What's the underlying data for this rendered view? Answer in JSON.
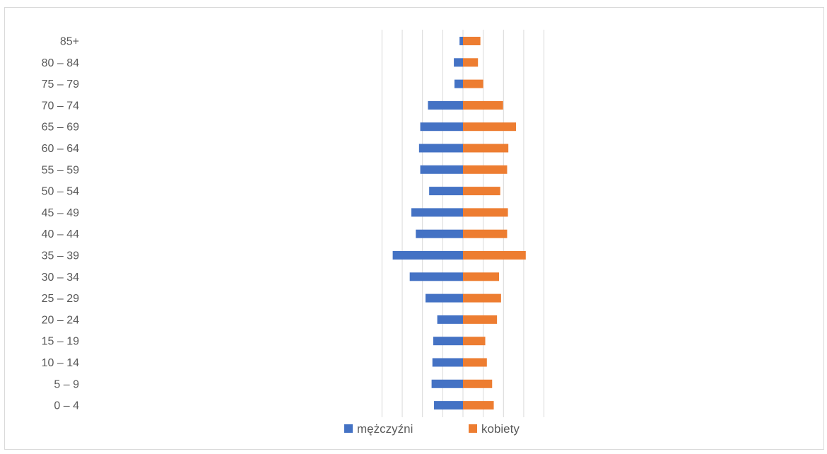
{
  "chart_data": {
    "type": "bar",
    "orientation": "horizontal",
    "layout": "population-pyramid",
    "categories": [
      "0 – 4",
      "5 – 9",
      "10 – 14",
      "15 – 19",
      "20 – 24",
      "25 – 29",
      "30 – 34",
      "35 – 39",
      "40 – 44",
      "45 – 49",
      "50 – 54",
      "55 – 59",
      "60 – 64",
      "65 – 69",
      "70 – 74",
      "75 – 79",
      "80 – 84",
      "85+"
    ],
    "series": [
      {
        "name": "mężczyźni",
        "side": "left",
        "color": "#4472C4",
        "values": [
          143,
          155,
          151,
          147,
          127,
          185,
          263,
          347,
          233,
          255,
          167,
          211,
          217,
          211,
          173,
          42,
          45,
          17
        ]
      },
      {
        "name": "kobiety",
        "side": "right",
        "color": "#ED7D31",
        "values": [
          152,
          144,
          118,
          110,
          168,
          188,
          178,
          310,
          218,
          222,
          184,
          218,
          224,
          262,
          198,
          100,
          74,
          86
        ]
      }
    ],
    "xlim": [
      -400,
      400
    ],
    "grid": true,
    "legend_position": "bottom"
  }
}
